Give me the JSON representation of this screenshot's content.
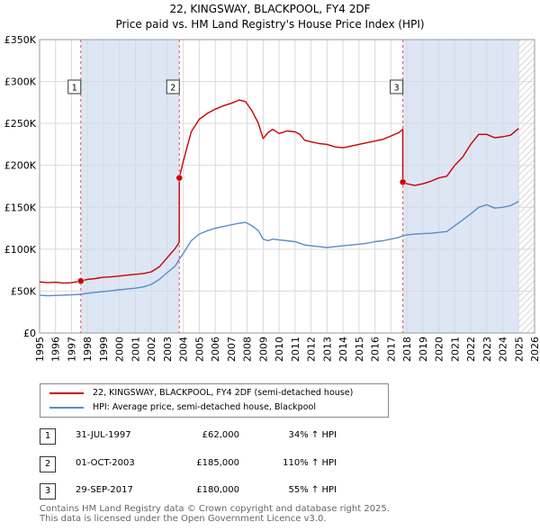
{
  "chart_data": {
    "type": "line",
    "title": "22, KINGSWAY, BLACKPOOL, FY4 2DF",
    "subtitle": "Price paid vs. HM Land Registry's House Price Index (HPI)",
    "xlim": [
      1995,
      2026
    ],
    "ylim": [
      0,
      350000
    ],
    "x_ticks": [
      1995,
      1996,
      1997,
      1998,
      1999,
      2000,
      2001,
      2002,
      2003,
      2004,
      2005,
      2006,
      2007,
      2008,
      2009,
      2010,
      2011,
      2012,
      2013,
      2014,
      2015,
      2016,
      2017,
      2018,
      2019,
      2020,
      2021,
      2022,
      2023,
      2024,
      2025,
      2026
    ],
    "y_ticks": [
      0,
      50000,
      100000,
      150000,
      200000,
      250000,
      300000,
      350000
    ],
    "y_tick_labels": [
      "£0",
      "£50K",
      "£100K",
      "£150K",
      "£200K",
      "£250K",
      "£300K",
      "£350K"
    ],
    "grid": true,
    "shaded_periods": [
      [
        1997.58,
        2003.75
      ],
      [
        2017.75,
        2025.0
      ]
    ],
    "hatched_after": 2025.0,
    "series": [
      {
        "name": "22, KINGSWAY, BLACKPOOL, FY4 2DF (semi-detached house)",
        "color": "#cc0000",
        "x": [
          1995.0,
          1995.5,
          1996.0,
          1996.5,
          1997.0,
          1997.58,
          1998.0,
          1998.5,
          1999.0,
          1999.5,
          2000.0,
          2000.5,
          2001.0,
          2001.5,
          2002.0,
          2002.5,
          2003.0,
          2003.5,
          2003.74,
          2003.75,
          2004.0,
          2004.5,
          2005.0,
          2005.5,
          2006.0,
          2006.5,
          2007.0,
          2007.5,
          2007.9,
          2008.3,
          2008.7,
          2009.0,
          2009.3,
          2009.6,
          2010.0,
          2010.5,
          2011.0,
          2011.3,
          2011.6,
          2012.0,
          2012.5,
          2013.0,
          2013.5,
          2014.0,
          2014.5,
          2015.0,
          2015.5,
          2016.0,
          2016.5,
          2017.0,
          2017.5,
          2017.74,
          2017.75,
          2018.0,
          2018.5,
          2019.0,
          2019.5,
          2020.0,
          2020.5,
          2021.0,
          2021.5,
          2022.0,
          2022.5,
          2023.0,
          2023.5,
          2024.0,
          2024.5,
          2025.0
        ],
        "y": [
          61000,
          60000,
          60500,
          59500,
          60000,
          62000,
          64000,
          65000,
          66500,
          67000,
          68000,
          69000,
          70000,
          71000,
          73000,
          79000,
          90000,
          101000,
          108000,
          185000,
          205000,
          240000,
          255000,
          262000,
          267000,
          271000,
          274000,
          278000,
          276000,
          265000,
          250000,
          232000,
          239000,
          243000,
          238000,
          241000,
          240000,
          237000,
          230000,
          228000,
          226000,
          225000,
          222000,
          221000,
          223000,
          225000,
          227000,
          229000,
          231000,
          235000,
          239000,
          243000,
          180000,
          178000,
          176000,
          178000,
          181000,
          185000,
          187000,
          200000,
          210000,
          225000,
          237000,
          237000,
          233000,
          234000,
          236000,
          244000
        ]
      },
      {
        "name": "HPI: Average price, semi-detached house, Blackpool",
        "color": "#5b8cc8",
        "x": [
          1995.0,
          1995.5,
          1996.0,
          1996.5,
          1997.0,
          1997.58,
          1998.0,
          1998.5,
          1999.0,
          1999.5,
          2000.0,
          2000.5,
          2001.0,
          2001.5,
          2002.0,
          2002.5,
          2003.0,
          2003.5,
          2003.75,
          2004.0,
          2004.5,
          2005.0,
          2005.5,
          2006.0,
          2006.5,
          2007.0,
          2007.5,
          2007.9,
          2008.3,
          2008.7,
          2009.0,
          2009.3,
          2009.6,
          2010.0,
          2010.5,
          2011.0,
          2011.3,
          2011.6,
          2012.0,
          2012.5,
          2013.0,
          2013.5,
          2014.0,
          2014.5,
          2015.0,
          2015.5,
          2016.0,
          2016.5,
          2017.0,
          2017.5,
          2017.75,
          2018.0,
          2018.5,
          2019.0,
          2019.5,
          2020.0,
          2020.5,
          2021.0,
          2021.5,
          2022.0,
          2022.5,
          2023.0,
          2023.5,
          2024.0,
          2024.5,
          2025.0
        ],
        "y": [
          45000,
          44500,
          44800,
          45200,
          45500,
          46200,
          47500,
          48500,
          49500,
          50500,
          51500,
          52500,
          53500,
          55000,
          58000,
          64000,
          72000,
          80000,
          88000,
          95000,
          110000,
          118000,
          122000,
          125000,
          127000,
          129000,
          131000,
          132000,
          128000,
          122000,
          112000,
          110000,
          112000,
          111000,
          110000,
          109000,
          107000,
          105000,
          104000,
          103000,
          102000,
          103000,
          104000,
          105000,
          106000,
          107000,
          109000,
          110000,
          112000,
          114000,
          116000,
          117000,
          118000,
          118500,
          119000,
          120000,
          121000,
          128000,
          135000,
          142000,
          150000,
          153000,
          149000,
          150000,
          152000,
          157000
        ]
      }
    ],
    "annotations": [
      {
        "label": "1",
        "x": 1997.58,
        "y": 62000
      },
      {
        "label": "2",
        "x": 2003.75,
        "y": 185000
      },
      {
        "label": "3",
        "x": 2017.75,
        "y": 180000
      }
    ]
  },
  "legend": {
    "items": [
      {
        "label": "22, KINGSWAY, BLACKPOOL, FY4 2DF (semi-detached house)",
        "color": "#cc0000"
      },
      {
        "label": "HPI: Average price, semi-detached house, Blackpool",
        "color": "#5b8cc8"
      }
    ]
  },
  "transactions": [
    {
      "num": "1",
      "date": "31-JUL-1997",
      "price": "£62,000",
      "hpi": "34% ↑ HPI"
    },
    {
      "num": "2",
      "date": "01-OCT-2003",
      "price": "£185,000",
      "hpi": "110% ↑ HPI"
    },
    {
      "num": "3",
      "date": "29-SEP-2017",
      "price": "£180,000",
      "hpi": "55% ↑ HPI"
    }
  ],
  "footer": {
    "line1": "Contains HM Land Registry data © Crown copyright and database right 2025.",
    "line2": "This data is licensed under the Open Government Licence v3.0."
  }
}
